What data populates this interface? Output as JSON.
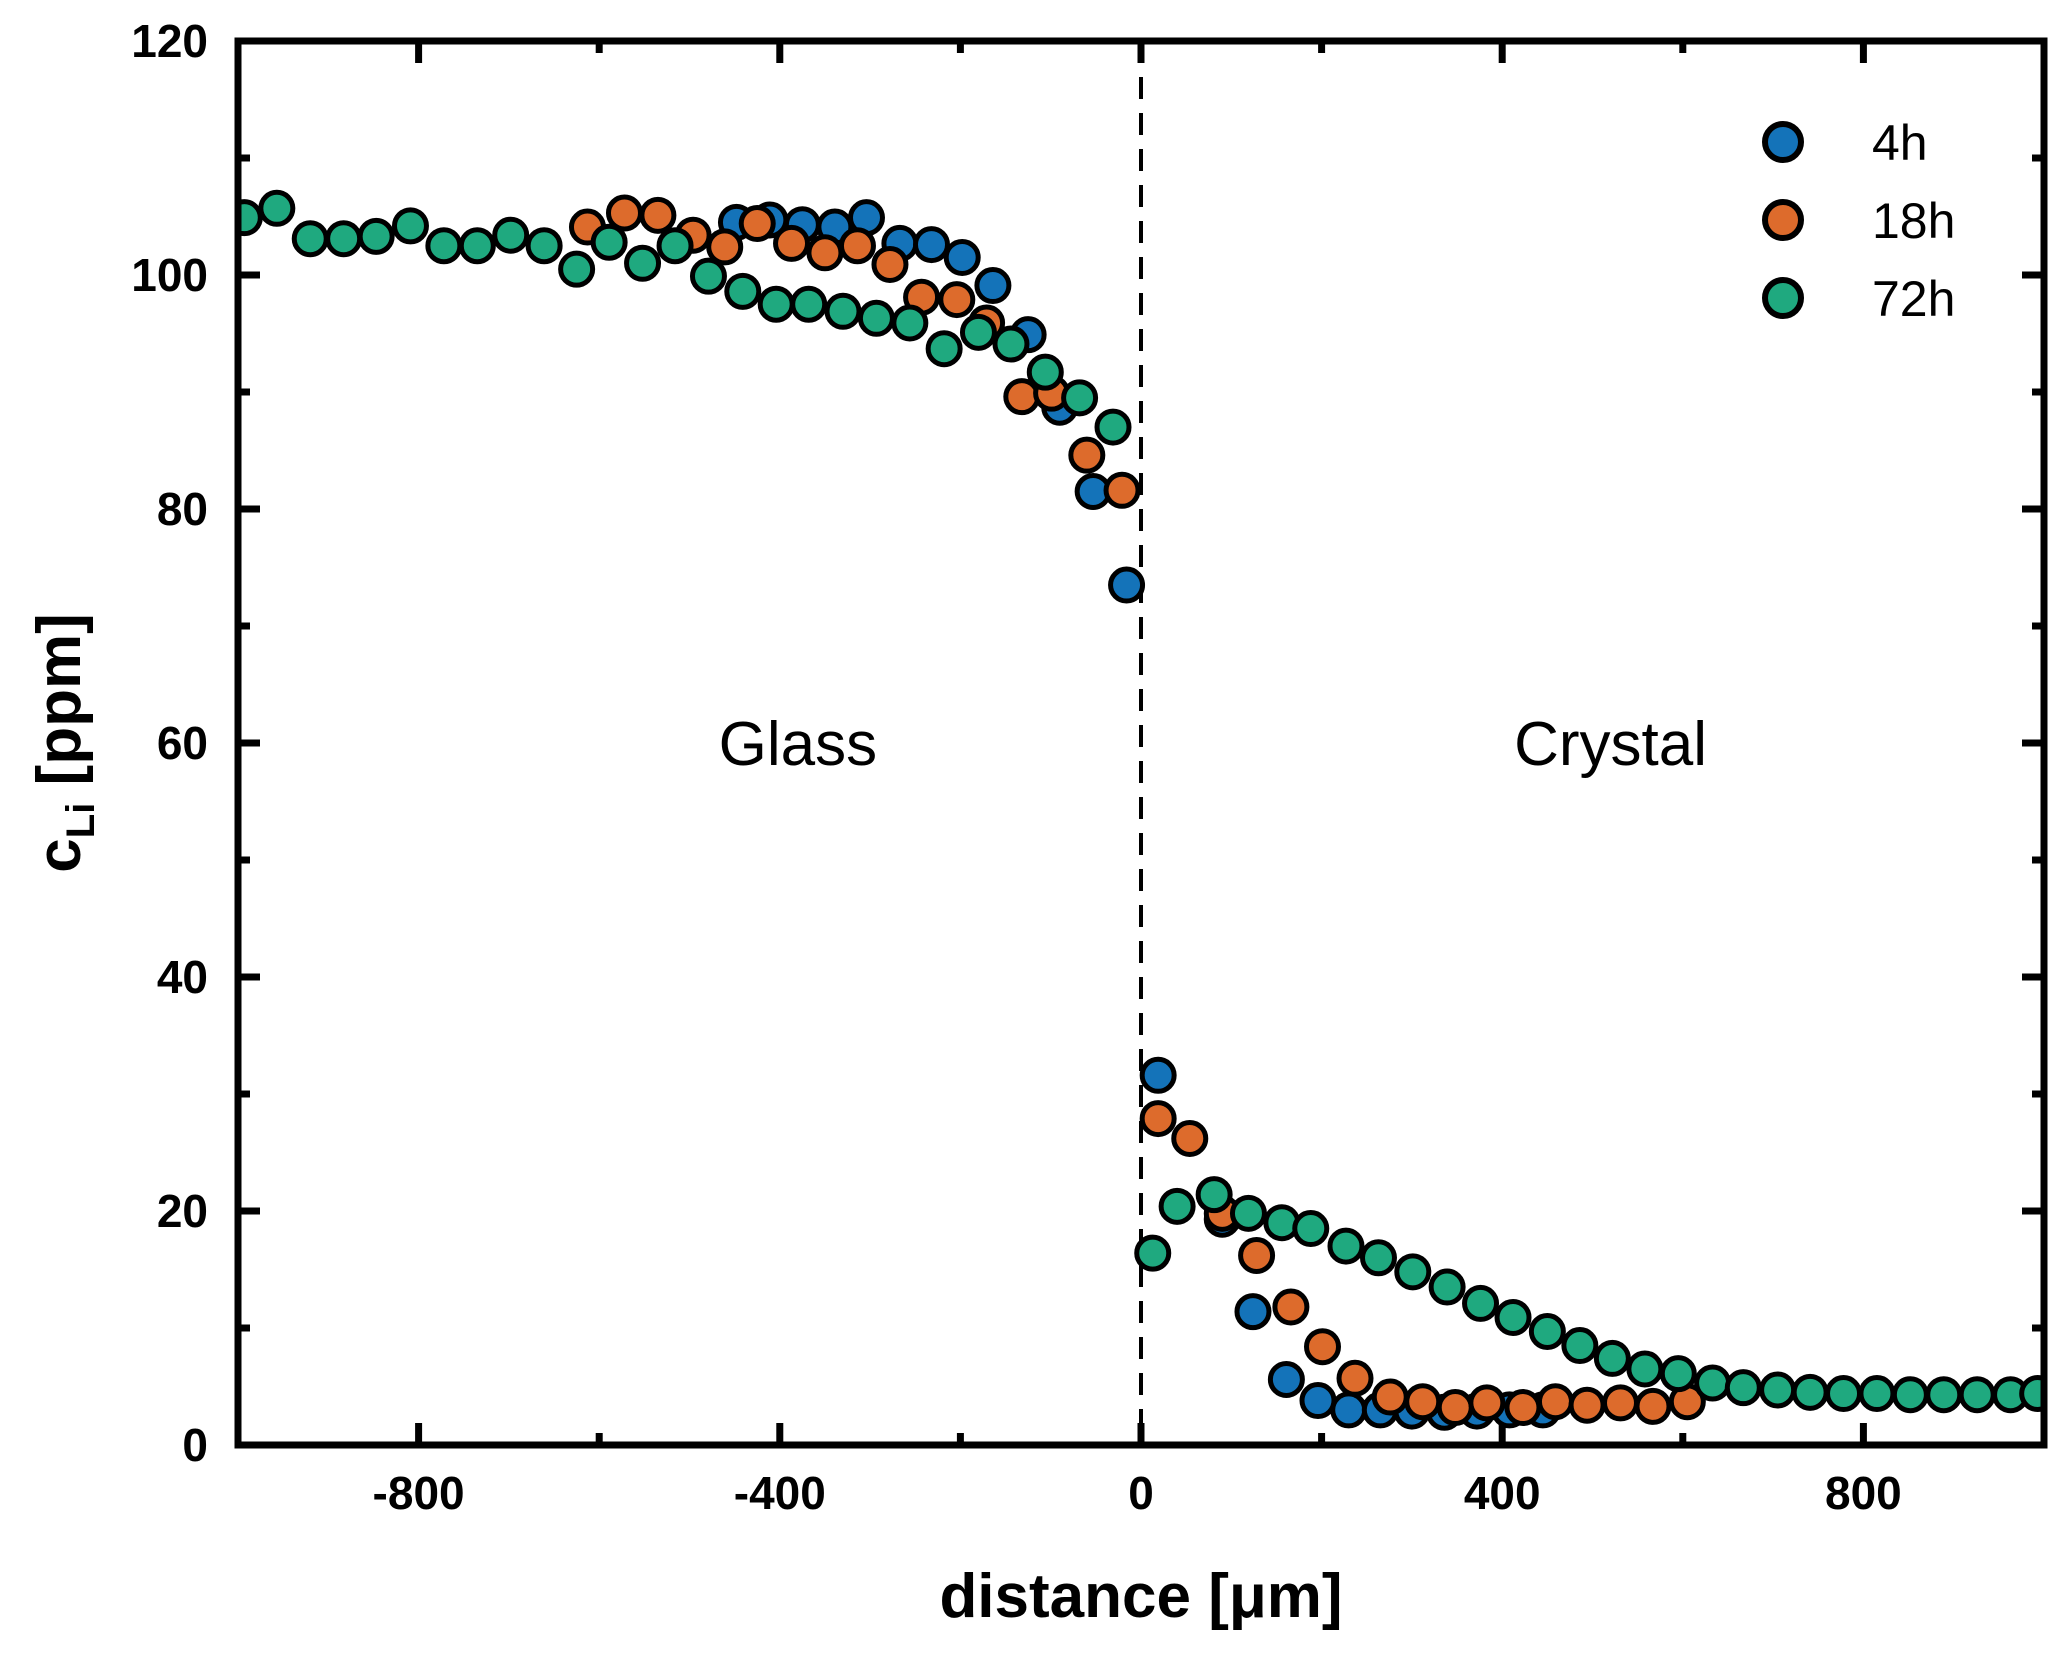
{
  "chart_data": {
    "type": "scatter",
    "title": "",
    "xlabel": "distance [μm]",
    "ylabel_main": "c",
    "ylabel_sub": "Li",
    "ylabel_unit": " [ppm]",
    "xlim": [
      -1000,
      1000
    ],
    "ylim": [
      0,
      120
    ],
    "x_major_ticks": [
      -800,
      -400,
      0,
      400,
      800
    ],
    "x_minor_ticks": [
      -600,
      -200,
      200,
      600
    ],
    "y_major_ticks": [
      0,
      20,
      40,
      60,
      80,
      100,
      120
    ],
    "y_minor_ticks": [
      10,
      30,
      50,
      70,
      90,
      110
    ],
    "x_tick_labels": [
      "-800",
      "-400",
      "0",
      "400",
      "800"
    ],
    "y_tick_labels": [
      "0",
      "20",
      "40",
      "60",
      "80",
      "100",
      "120"
    ],
    "grid": false,
    "legend_position": "top-right",
    "interface_line": {
      "x": 0,
      "style": "dashed"
    },
    "annotations": [
      {
        "text": "Glass",
        "x": -380,
        "y": 60
      },
      {
        "text": "Crystal",
        "x": 520,
        "y": 60
      }
    ],
    "series": [
      {
        "name": "4h",
        "color": "#1473b9",
        "points": [
          [
            -448,
            104.5
          ],
          [
            -411,
            104.7
          ],
          [
            -375,
            104.3
          ],
          [
            -339,
            104.1
          ],
          [
            -304,
            104.9
          ],
          [
            -267,
            102.7
          ],
          [
            -232,
            102.6
          ],
          [
            -198,
            101.5
          ],
          [
            -164,
            99.1
          ],
          [
            -125,
            94.9
          ],
          [
            -90,
            88.7
          ],
          [
            -53,
            81.5
          ],
          [
            -16,
            73.5
          ],
          [
            19,
            31.6
          ],
          [
            90,
            19.3
          ],
          [
            124,
            11.4
          ],
          [
            161,
            5.6
          ],
          [
            196,
            3.8
          ],
          [
            230,
            3.0
          ],
          [
            265,
            3.0
          ],
          [
            300,
            2.9
          ],
          [
            336,
            2.8
          ],
          [
            372,
            2.9
          ],
          [
            408,
            3.0
          ],
          [
            445,
            3.0
          ]
        ]
      },
      {
        "name": "18h",
        "color": "#dd6b2c",
        "points": [
          [
            -613,
            104.1
          ],
          [
            -572,
            105.3
          ],
          [
            -535,
            105.1
          ],
          [
            -496,
            103.4
          ],
          [
            -461,
            102.4
          ],
          [
            -425,
            104.4
          ],
          [
            -387,
            102.7
          ],
          [
            -350,
            101.9
          ],
          [
            -314,
            102.5
          ],
          [
            -278,
            100.9
          ],
          [
            -243,
            98.1
          ],
          [
            -204,
            97.9
          ],
          [
            -171,
            95.9
          ],
          [
            -132,
            89.6
          ],
          [
            -99,
            89.9
          ],
          [
            -60,
            84.6
          ],
          [
            -21,
            81.6
          ],
          [
            19,
            27.9
          ],
          [
            54,
            26.2
          ],
          [
            90,
            19.8
          ],
          [
            128,
            16.2
          ],
          [
            166,
            11.8
          ],
          [
            201,
            8.4
          ],
          [
            237,
            5.7
          ],
          [
            276,
            4.1
          ],
          [
            312,
            3.7
          ],
          [
            348,
            3.2
          ],
          [
            383,
            3.6
          ],
          [
            423,
            3.2
          ],
          [
            459,
            3.7
          ],
          [
            494,
            3.4
          ],
          [
            531,
            3.6
          ],
          [
            567,
            3.3
          ],
          [
            605,
            3.7
          ]
        ]
      },
      {
        "name": "72h",
        "color": "#1fa97f",
        "points": [
          [
            -993,
            104.9
          ],
          [
            -957,
            105.7
          ],
          [
            -920,
            103.1
          ],
          [
            -883,
            103.1
          ],
          [
            -847,
            103.3
          ],
          [
            -809,
            104.2
          ],
          [
            -772,
            102.5
          ],
          [
            -735,
            102.5
          ],
          [
            -698,
            103.4
          ],
          [
            -661,
            102.5
          ],
          [
            -625,
            100.5
          ],
          [
            -589,
            102.8
          ],
          [
            -552,
            101.0
          ],
          [
            -516,
            102.5
          ],
          [
            -479,
            99.9
          ],
          [
            -441,
            98.6
          ],
          [
            -404,
            97.5
          ],
          [
            -368,
            97.5
          ],
          [
            -330,
            96.9
          ],
          [
            -293,
            96.3
          ],
          [
            -256,
            95.9
          ],
          [
            -218,
            93.7
          ],
          [
            -180,
            95.1
          ],
          [
            -144,
            94.1
          ],
          [
            -106,
            91.7
          ],
          [
            -68,
            89.5
          ],
          [
            -31,
            87.0
          ],
          [
            13,
            16.4
          ],
          [
            40,
            20.4
          ],
          [
            81,
            21.4
          ],
          [
            119,
            19.8
          ],
          [
            156,
            19.0
          ],
          [
            188,
            18.5
          ],
          [
            227,
            17.0
          ],
          [
            263,
            16.0
          ],
          [
            301,
            14.8
          ],
          [
            339,
            13.5
          ],
          [
            376,
            12.1
          ],
          [
            412,
            10.9
          ],
          [
            450,
            9.7
          ],
          [
            486,
            8.5
          ],
          [
            522,
            7.4
          ],
          [
            558,
            6.5
          ],
          [
            595,
            6.1
          ],
          [
            633,
            5.3
          ],
          [
            667,
            4.9
          ],
          [
            705,
            4.7
          ],
          [
            741,
            4.5
          ],
          [
            778,
            4.4
          ],
          [
            815,
            4.4
          ],
          [
            852,
            4.3
          ],
          [
            889,
            4.3
          ],
          [
            926,
            4.3
          ],
          [
            963,
            4.3
          ],
          [
            993,
            4.4
          ]
        ]
      }
    ]
  }
}
